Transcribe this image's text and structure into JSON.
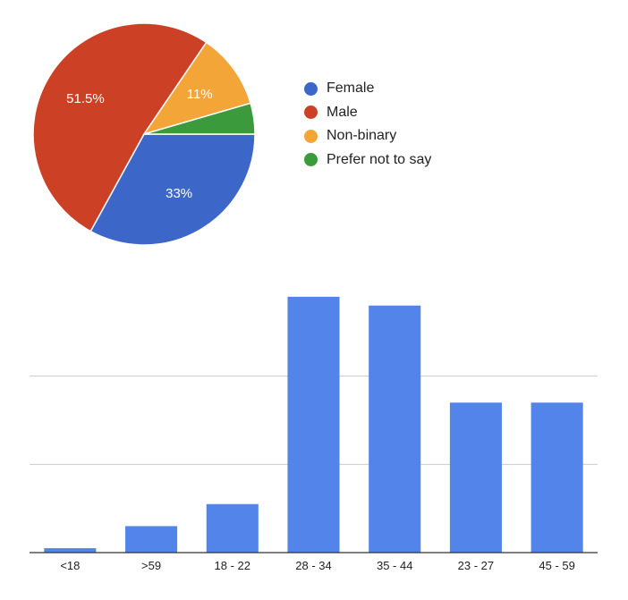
{
  "chart_data": [
    {
      "type": "pie",
      "title": "",
      "slices": [
        {
          "name": "Female",
          "value": 33,
          "color": "#3d66c9",
          "label": "33%"
        },
        {
          "name": "Male",
          "value": 51.5,
          "color": "#cc4125",
          "label": "51.5%"
        },
        {
          "name": "Non-binary",
          "value": 11,
          "color": "#f4a537",
          "label": "11%"
        },
        {
          "name": "Prefer not to say",
          "value": 4.5,
          "color": "#3b9a3b",
          "label": ""
        }
      ],
      "legend_position": "right"
    },
    {
      "type": "bar",
      "title": "",
      "xlabel": "",
      "ylabel": "",
      "categories": [
        "<18",
        ">59",
        "18 - 22",
        "28 - 34",
        "35 - 44",
        "23 - 27",
        "45 - 59"
      ],
      "values": [
        1,
        6,
        11,
        58,
        56,
        34,
        34
      ],
      "ylim": [
        0,
        60
      ],
      "gridlines": [
        20,
        40
      ],
      "grid": true,
      "color": "#5284ea"
    }
  ]
}
